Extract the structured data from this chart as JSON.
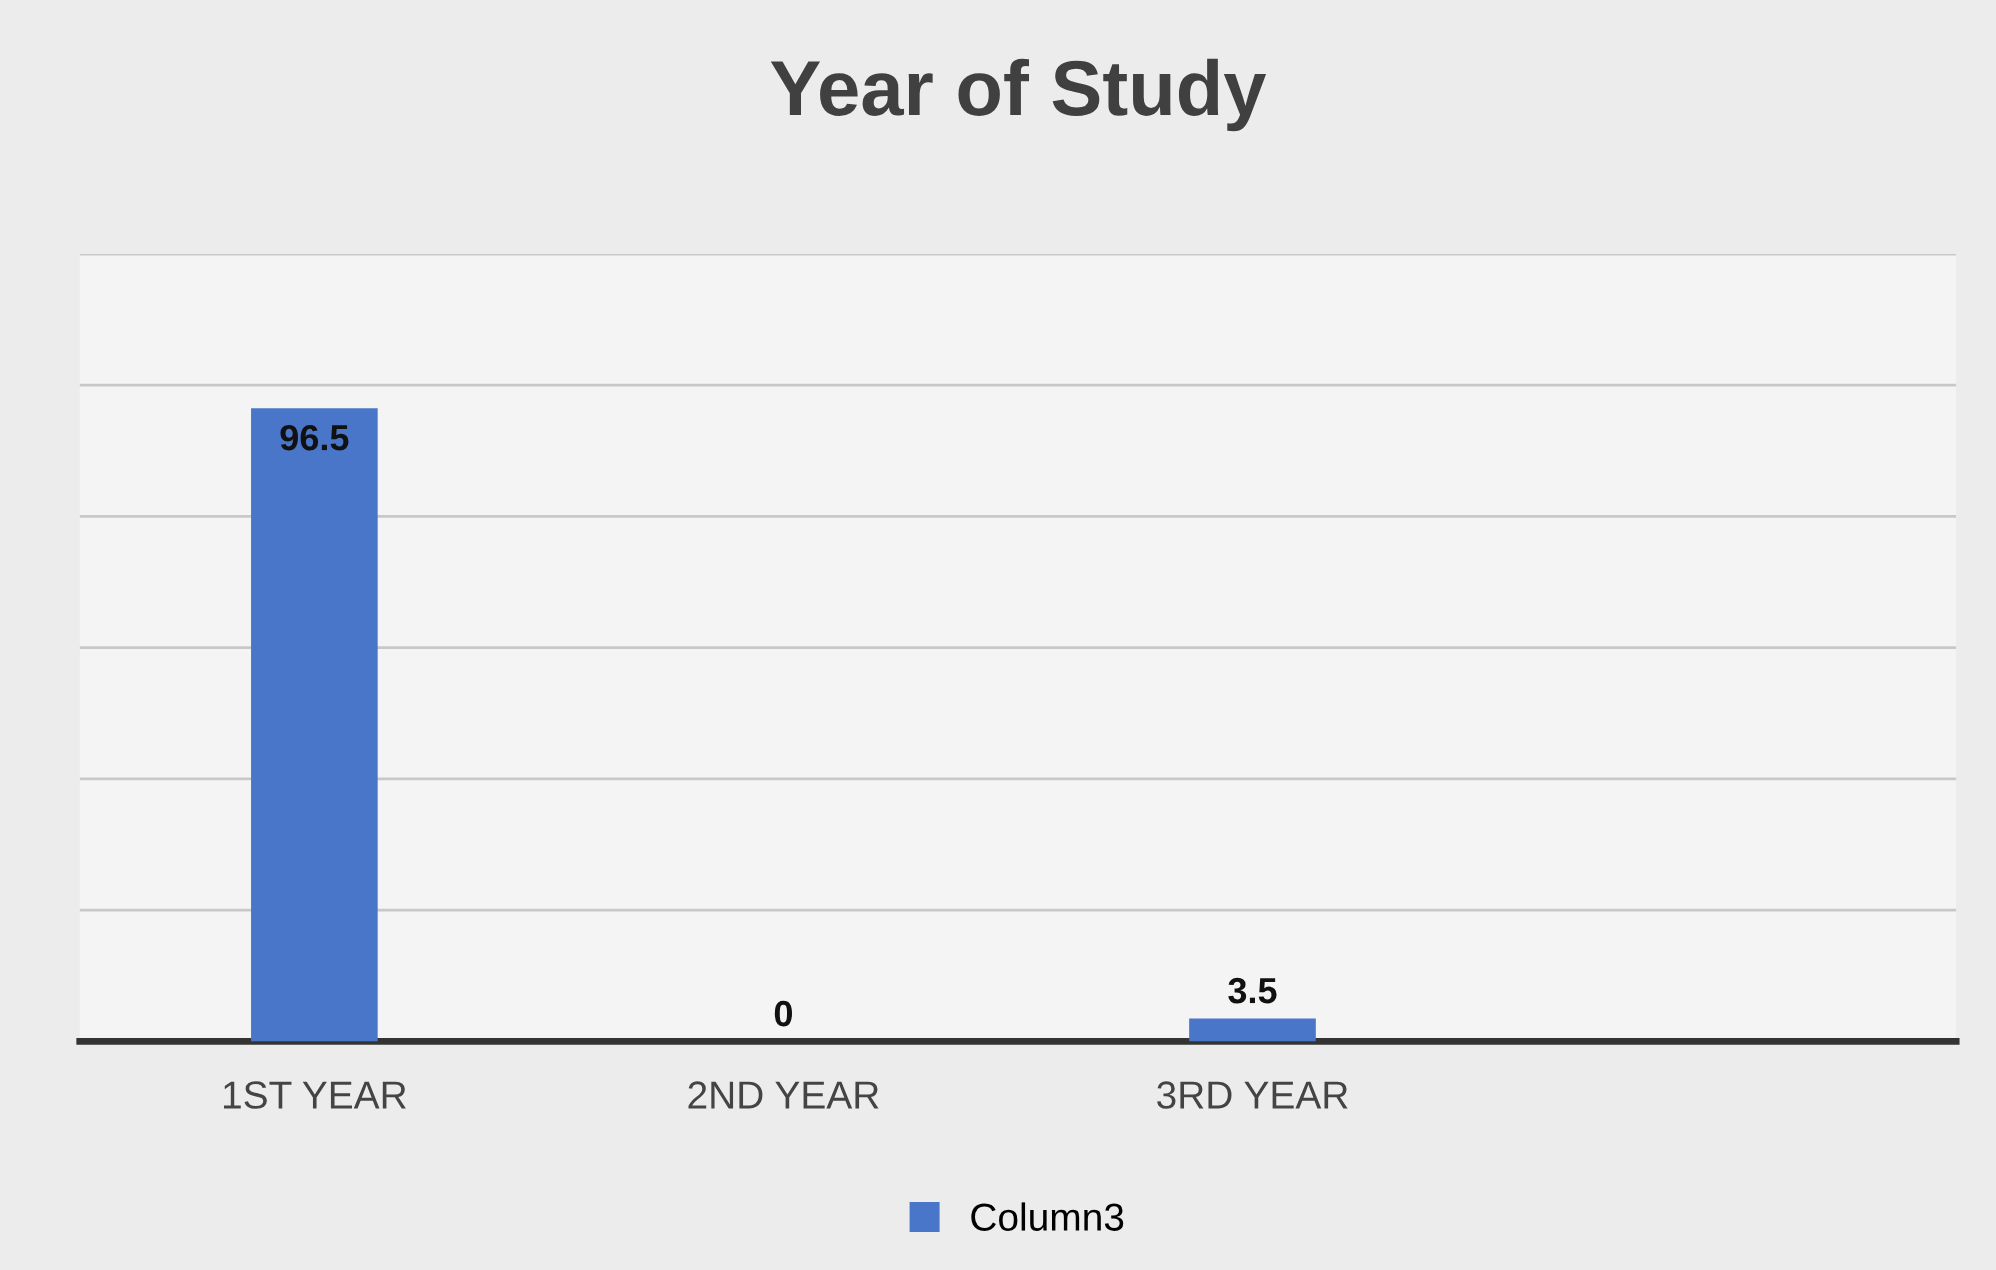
{
  "chart_data": {
    "type": "bar",
    "title": "Year of Study",
    "categories": [
      "1ST YEAR",
      "2ND YEAR",
      "3RD YEAR",
      null
    ],
    "series": [
      {
        "name": "Column3",
        "color": "#4a76c9",
        "values": [
          96.5,
          0,
          3.5,
          null
        ]
      }
    ],
    "ylim": [
      0,
      120
    ],
    "yticks": [
      {
        "value": 0,
        "label": null
      },
      {
        "value": 20,
        "label": null
      },
      {
        "value": 40,
        "label": null
      },
      {
        "value": 60,
        "label": null
      },
      {
        "value": 80,
        "label": null
      },
      {
        "value": 100,
        "label": null
      },
      {
        "value": 120,
        "label": null
      }
    ],
    "grid": "y",
    "legend": "bottom",
    "data_labels": true
  }
}
